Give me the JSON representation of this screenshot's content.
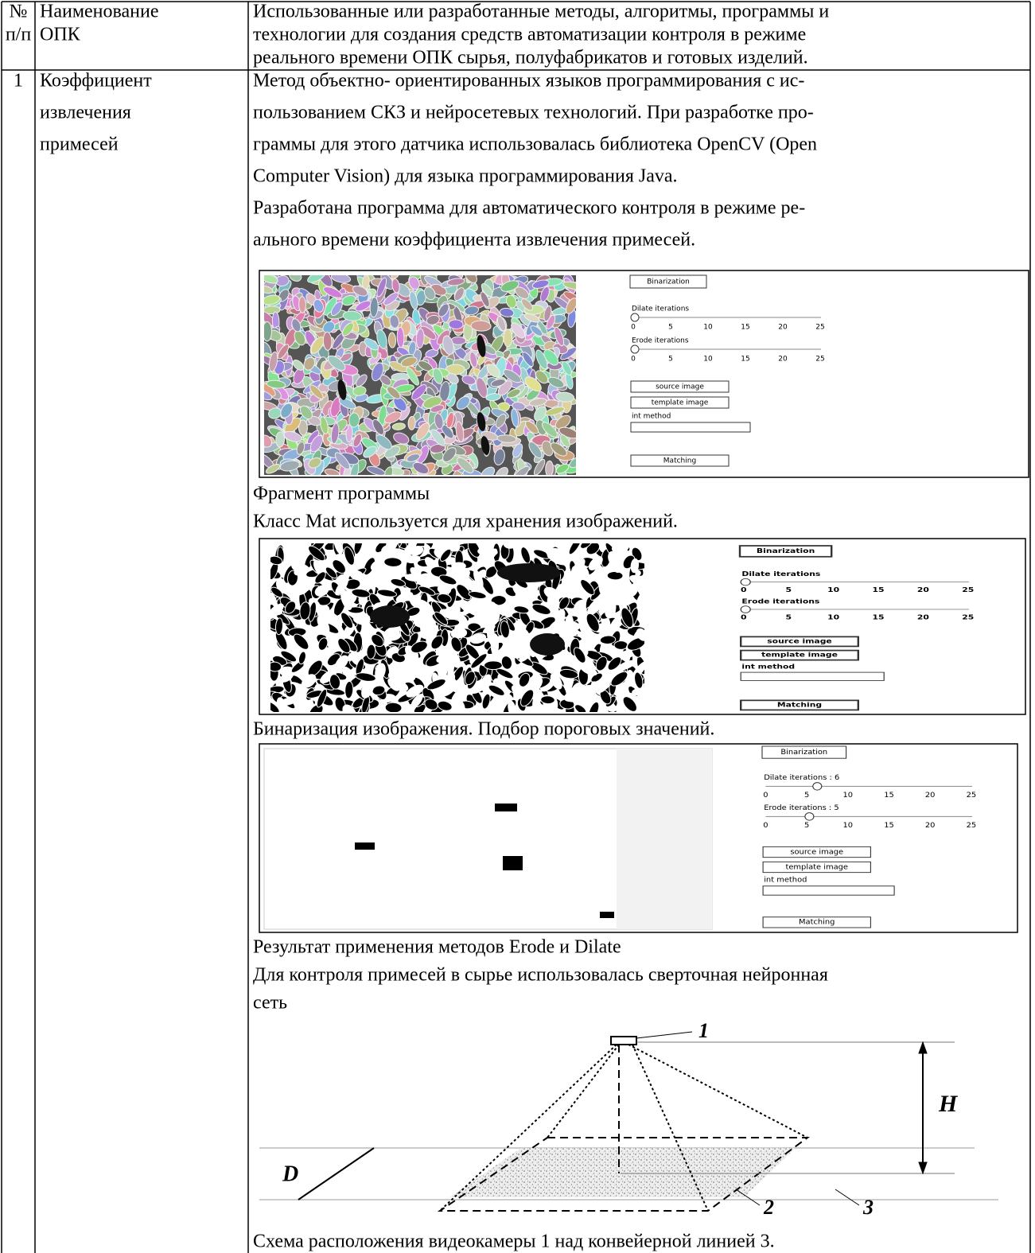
{
  "table": {
    "header": [
      [
        "№",
        "п/п"
      ],
      [
        "Наименование",
        "ОПК"
      ],
      [
        "Использованные или разработанные методы, алгоритмы, программы и",
        "технологии для создания средств автоматизации контроля в режиме",
        "реального времени ОПК сырья, полуфабрикатов и готовых изделий."
      ]
    ],
    "rows": [
      {
        "number": "1",
        "name": [
          "Коэффициент",
          "извлечения",
          "примесей"
        ],
        "intro": [
          "Метод объектно- ориентированных языков программирования с ис-",
          "пользованием СКЗ и нейросетевых технологий. При разработке про-",
          "граммы для этого датчика использовалась библиотека OpenCV (Open",
          "Computer Vision) для языка программирования Java.",
          "Разработана программа для автоматического контроля в режиме ре-",
          "ального времени коэффициента извлечения примесей."
        ],
        "screens": [
          {
            "binarization": "Binarization",
            "dilate": "Dilate iterations",
            "erode": "Erode iterations",
            "scale": [
              "0",
              "5",
              "10",
              "15",
              "20",
              "25"
            ],
            "source": "source image",
            "template": "template image",
            "method": "int method",
            "matching": "Matching"
          },
          {
            "binarization": "Binarization",
            "dilate": "Dilate iterations",
            "erode": "Erode iterations",
            "scale": [
              "0",
              "5",
              "10",
              "15",
              "20",
              "25"
            ],
            "source": "source image",
            "template": "template image",
            "method": "int method",
            "matching": "Matching"
          },
          {
            "binarization": "Binarization",
            "dilate": "Dilate iterations : 6",
            "erode": "Erode iterations : 5",
            "scale": [
              "0",
              "5",
              "10",
              "15",
              "20",
              "25"
            ],
            "source": "source image",
            "template": "template image",
            "method": "int method",
            "matching": "Matching"
          }
        ],
        "captions": [
          [
            "Фрагмент программы",
            "Класс Mat используется для хранения изображений."
          ],
          [
            "Бинаризация изображения. Подбор пороговых значений."
          ],
          [
            "Результат применения методов Erode и Dilate",
            "Для контроля примесей в сырье использовалась сверточная нейронная",
            "сеть"
          ]
        ],
        "diagram": {
          "camera": "1",
          "height": "H",
          "width": "D",
          "field": "2",
          "conveyor": "3"
        },
        "diagram_caption": "Схема расположения видеокамеры 1 над конвейерной линией 3."
      }
    ]
  }
}
